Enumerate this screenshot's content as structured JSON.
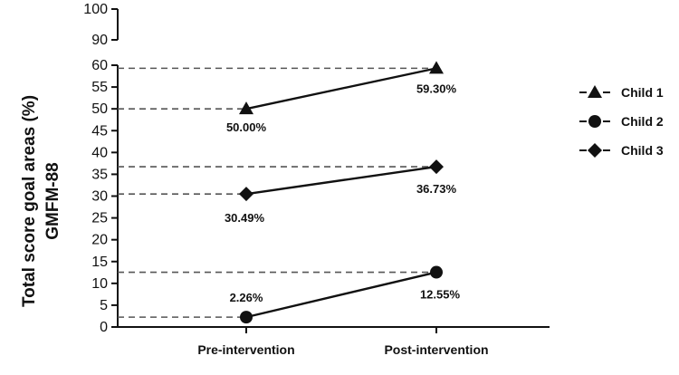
{
  "chart_data": {
    "type": "line",
    "ylabel_lines": [
      "Total score goal areas (%)",
      "GMFM-88"
    ],
    "categories": [
      "Pre-intervention",
      "Post-intervention"
    ],
    "ylim": [
      0,
      100
    ],
    "axis_break": [
      60,
      90
    ],
    "yticks": [
      0,
      5,
      10,
      15,
      20,
      25,
      30,
      35,
      40,
      45,
      50,
      55,
      60,
      90,
      100
    ],
    "ytick_labels": [
      "0",
      "5",
      "10",
      "15",
      "20",
      "25",
      "30",
      "35",
      "40",
      "45",
      "50",
      "55",
      "60",
      "90",
      "100"
    ],
    "series": [
      {
        "name": "Child 1",
        "marker": "triangle",
        "values": [
          50.0,
          59.3
        ],
        "labels": [
          "50.00%",
          "59.30%"
        ]
      },
      {
        "name": "Child 2",
        "marker": "circle",
        "values": [
          2.26,
          12.55
        ],
        "labels": [
          "2.26%",
          "12.55%"
        ]
      },
      {
        "name": "Child 3",
        "marker": "diamond",
        "values": [
          30.49,
          36.73
        ],
        "labels": [
          "30.49%",
          "36.73%"
        ]
      }
    ],
    "legend_position": "right",
    "reference_lines": "dashed"
  }
}
